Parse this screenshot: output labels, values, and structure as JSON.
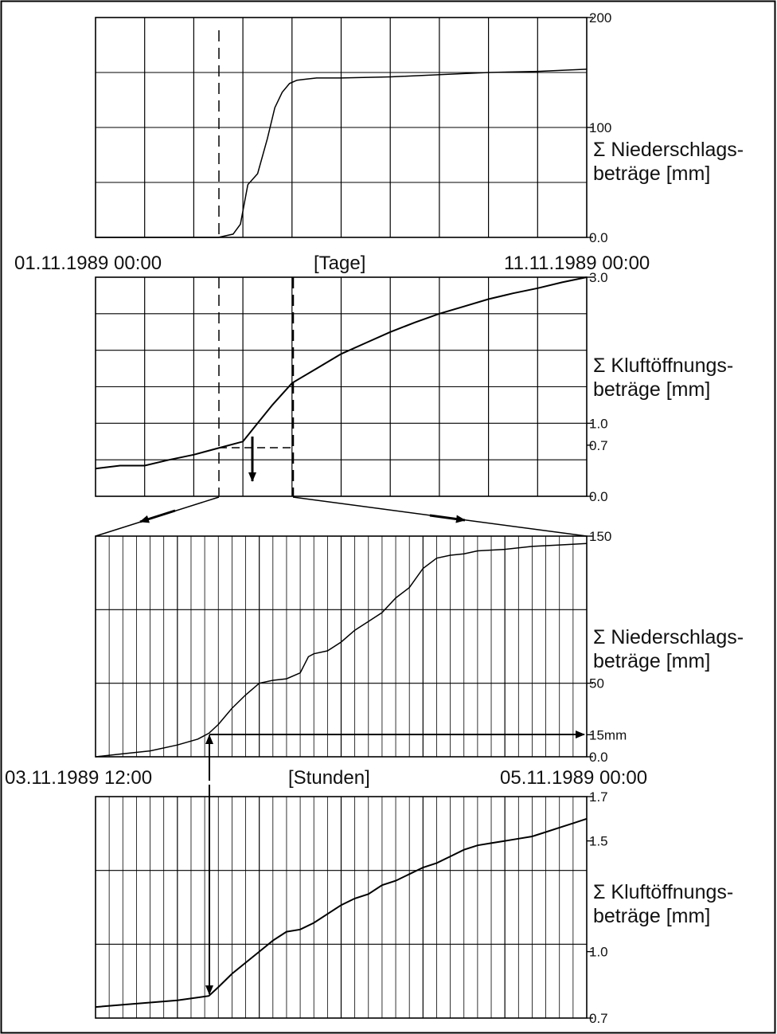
{
  "chart_data": [
    {
      "type": "line",
      "id": "daily-precipitation",
      "ylabel_line1": "Σ Niederschlags-",
      "ylabel_line2": "beträge [mm]",
      "xlabel": "[Tage]",
      "x_start_label": "01.11.1989 00:00",
      "x_end_label": "11.11.1989 00:00",
      "x_unit": "days",
      "xlim": [
        0,
        10
      ],
      "ylim": [
        0,
        200
      ],
      "y_ticks": [
        {
          "value": 0,
          "label": "0.0"
        },
        {
          "value": 100,
          "label": "100"
        },
        {
          "value": 200,
          "label": "200"
        }
      ],
      "grid": true,
      "series": [
        {
          "x": [
            0,
            2.5,
            2.8,
            2.95,
            3.1,
            3.3,
            3.5,
            3.65,
            3.8,
            3.95,
            4.1,
            4.3,
            4.5,
            5,
            6,
            7,
            8,
            9,
            10
          ],
          "y": [
            0,
            0,
            3,
            12,
            48,
            58,
            90,
            118,
            132,
            140,
            143,
            144,
            145,
            145,
            146,
            148,
            150,
            151,
            153
          ]
        }
      ]
    },
    {
      "type": "line",
      "id": "daily-joint-opening",
      "ylabel_line1": "Σ Kluftöffnungs-",
      "ylabel_line2": "beträge [mm]",
      "x_unit": "days",
      "xlim": [
        0,
        10
      ],
      "ylim": [
        0,
        3.0
      ],
      "y_ticks": [
        {
          "value": 0,
          "label": "0.0"
        },
        {
          "value": 0.7,
          "label": "0.7"
        },
        {
          "value": 1.0,
          "label": "1.0"
        },
        {
          "value": 3.0,
          "label": "3.0"
        }
      ],
      "grid": true,
      "series": [
        {
          "x": [
            0,
            0.5,
            1,
            1.5,
            2,
            2.5,
            3,
            3.3,
            3.6,
            4,
            4.5,
            5,
            5.5,
            6,
            6.5,
            7,
            7.5,
            8,
            8.5,
            9,
            9.5,
            10
          ],
          "y": [
            0.38,
            0.42,
            0.42,
            0.5,
            0.57,
            0.66,
            0.75,
            1.0,
            1.25,
            1.55,
            1.75,
            1.95,
            2.1,
            2.25,
            2.38,
            2.5,
            2.6,
            2.7,
            2.78,
            2.85,
            2.93,
            3.0
          ]
        }
      ],
      "annotation": "zoom window 03.11.1989 12:00 – 05.11.1989 00:00, 0.0 – 0.7"
    },
    {
      "type": "line",
      "id": "hourly-precipitation",
      "ylabel_line1": "Σ Niederschlags-",
      "ylabel_line2": "beträge [mm]",
      "xlabel": "[Stunden]",
      "x_start_label": "03.11.1989 12:00",
      "x_end_label": "05.11.1989 00:00",
      "x_unit": "hours",
      "xlim": [
        0,
        36
      ],
      "ylim": [
        0,
        150
      ],
      "y_ticks": [
        {
          "value": 0,
          "label": "0.0"
        },
        {
          "value": 15,
          "label": "15mm"
        },
        {
          "value": 50,
          "label": "50"
        },
        {
          "value": 150,
          "label": "150"
        }
      ],
      "threshold": 15,
      "grid": true,
      "series": [
        {
          "x": [
            0,
            2,
            4,
            6,
            7.5,
            8.3,
            9,
            10,
            11,
            12,
            13,
            14,
            15,
            15.6,
            16,
            17,
            18,
            19,
            20,
            21,
            22,
            23,
            24,
            25,
            26,
            27,
            28,
            30,
            32,
            34,
            36
          ],
          "y": [
            0,
            2,
            4,
            8,
            12,
            16,
            22,
            33,
            42,
            50,
            52,
            53,
            57,
            68,
            70,
            72,
            78,
            86,
            92,
            98,
            108,
            115,
            128,
            135,
            137,
            138,
            140,
            141,
            143,
            144,
            145
          ]
        }
      ]
    },
    {
      "type": "line",
      "id": "hourly-joint-opening",
      "ylabel_line1": "Σ Kluftöffnungs-",
      "ylabel_line2": "beträge [mm]",
      "x_unit": "hours",
      "xlim": [
        0,
        36
      ],
      "ylim": [
        0.7,
        1.7
      ],
      "y_ticks": [
        {
          "value": 0.7,
          "label": "0.7"
        },
        {
          "value": 1.0,
          "label": "1.0"
        },
        {
          "value": 1.5,
          "label": "1.5"
        },
        {
          "value": 1.7,
          "label": "1.7"
        }
      ],
      "grid": true,
      "series": [
        {
          "x": [
            0,
            2,
            4,
            6,
            8.3,
            9,
            10,
            11,
            12,
            13,
            14,
            15,
            16,
            17,
            18,
            19,
            20,
            21,
            22,
            23,
            24,
            25,
            26,
            27,
            28,
            29,
            30,
            31,
            32,
            33,
            34,
            35,
            36
          ],
          "y": [
            0.75,
            0.76,
            0.77,
            0.78,
            0.8,
            0.84,
            0.9,
            0.95,
            1.0,
            1.05,
            1.09,
            1.1,
            1.13,
            1.17,
            1.21,
            1.24,
            1.26,
            1.3,
            1.32,
            1.35,
            1.38,
            1.4,
            1.43,
            1.46,
            1.48,
            1.49,
            1.5,
            1.51,
            1.52,
            1.54,
            1.56,
            1.58,
            1.6
          ]
        }
      ]
    }
  ]
}
